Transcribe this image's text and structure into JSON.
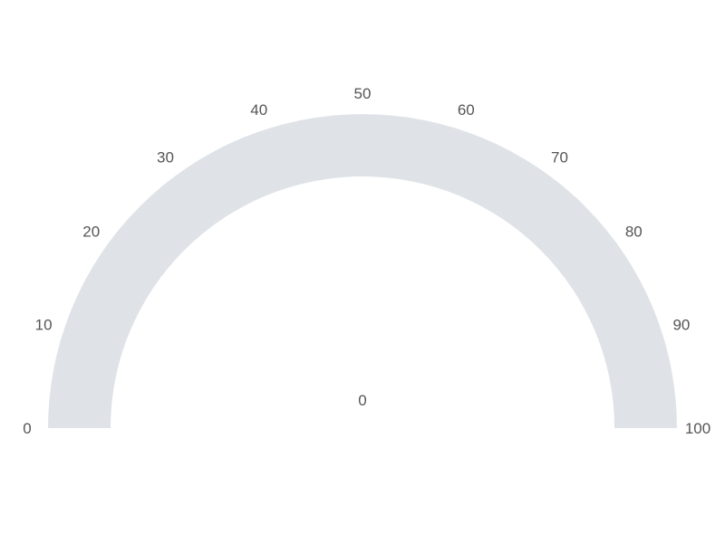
{
  "chart_data": {
    "type": "gauge",
    "title": "",
    "value": 0,
    "value_label": "0",
    "min": 0,
    "max": 100,
    "ticks": [
      {
        "value": 0,
        "label": "0"
      },
      {
        "value": 10,
        "label": "10"
      },
      {
        "value": 20,
        "label": "20"
      },
      {
        "value": 30,
        "label": "30"
      },
      {
        "value": 40,
        "label": "40"
      },
      {
        "value": 50,
        "label": "50"
      },
      {
        "value": 60,
        "label": "60"
      },
      {
        "value": 70,
        "label": "70"
      },
      {
        "value": 80,
        "label": "80"
      },
      {
        "value": 90,
        "label": "90"
      },
      {
        "value": 100,
        "label": "100"
      }
    ],
    "colors": {
      "track": "#dfe3e7",
      "fill": "#4e79a7",
      "text": "#555555"
    }
  }
}
